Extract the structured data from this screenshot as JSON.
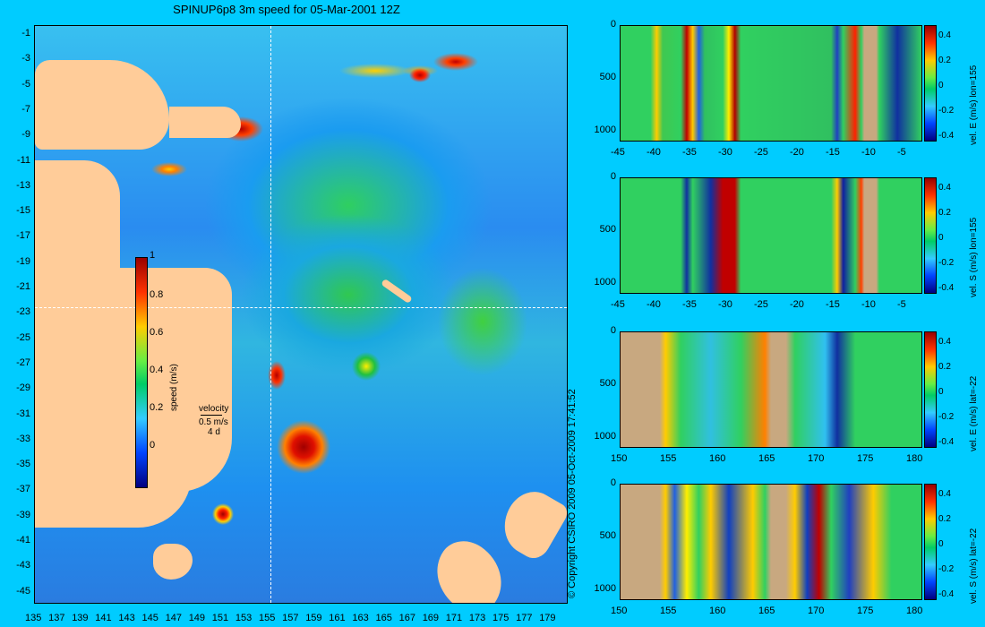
{
  "title": "SPINUP6p8 3m speed for 05-Mar-2001 12Z",
  "map": {
    "lat_ticks": [
      "-1",
      "-3",
      "-5",
      "-7",
      "-9",
      "-11",
      "-13",
      "-15",
      "-17",
      "-19",
      "-21",
      "-23",
      "-25",
      "-27",
      "-29",
      "-31",
      "-33",
      "-35",
      "-37",
      "-39",
      "-41",
      "-43",
      "-45"
    ],
    "lon_ticks": [
      "135",
      "137",
      "139",
      "141",
      "143",
      "145",
      "147",
      "149",
      "151",
      "153",
      "155",
      "157",
      "159",
      "161",
      "163",
      "165",
      "167",
      "169",
      "171",
      "173",
      "175",
      "177",
      "179"
    ],
    "colorbar_ticks": [
      "1",
      "0.8",
      "0.6",
      "0.4",
      "0.2",
      "0"
    ],
    "colorbar_label": "speed (m/s)",
    "velocity_key": {
      "title": "velocity",
      "speed": "0.5 m/s",
      "duration": "4 d"
    }
  },
  "copyright": "© Copyright CSIRO 2009   05-Oct-2009 17:41:52",
  "panels": [
    {
      "label": "vel. E (m/s) lon=155",
      "x_ticks": [
        "-45",
        "-40",
        "-35",
        "-30",
        "-25",
        "-20",
        "-15",
        "-10",
        "-5"
      ],
      "y_ticks": [
        "0",
        "500",
        "1000"
      ],
      "cbar_ticks": [
        "0.4",
        "0.2",
        "0",
        "-0.2",
        "-0.4"
      ]
    },
    {
      "label": "vel. S (m/s) lon=155",
      "x_ticks": [
        "-45",
        "-40",
        "-35",
        "-30",
        "-25",
        "-20",
        "-15",
        "-10",
        "-5"
      ],
      "y_ticks": [
        "0",
        "500",
        "1000"
      ],
      "cbar_ticks": [
        "0.4",
        "0.2",
        "0",
        "-0.2",
        "-0.4"
      ]
    },
    {
      "label": "vel. E (m/s) lat=-22",
      "x_ticks": [
        "150",
        "155",
        "160",
        "165",
        "170",
        "175",
        "180"
      ],
      "y_ticks": [
        "0",
        "500",
        "1000"
      ],
      "cbar_ticks": [
        "0.4",
        "0.2",
        "0",
        "-0.2",
        "-0.4"
      ]
    },
    {
      "label": "vel. S (m/s) lat=-22",
      "x_ticks": [
        "150",
        "155",
        "160",
        "165",
        "170",
        "175",
        "180"
      ],
      "y_ticks": [
        "0",
        "500",
        "1000"
      ],
      "cbar_ticks": [
        "0.4",
        "0.2",
        "0",
        "-0.2",
        "-0.4"
      ]
    }
  ]
}
